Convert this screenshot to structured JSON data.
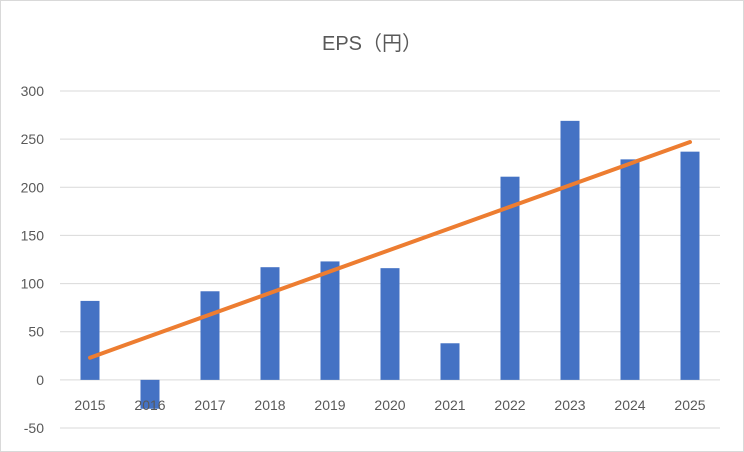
{
  "chart_data": {
    "type": "bar",
    "title": "EPS（円）",
    "xlabel": "",
    "ylabel": "",
    "categories": [
      "2015",
      "2016",
      "2017",
      "2018",
      "2019",
      "2020",
      "2021",
      "2022",
      "2023",
      "2024",
      "2025"
    ],
    "series": [
      {
        "values": [
          82,
          -30,
          92,
          117,
          123,
          116,
          38,
          211,
          269,
          229,
          237
        ],
        "color": "#4472c4"
      }
    ],
    "trendline": {
      "type": "linear",
      "color": "#ed7d31",
      "start": 23,
      "end": 247
    },
    "ylim": [
      -50,
      300
    ],
    "yticks": [
      -50,
      0,
      50,
      100,
      150,
      200,
      250,
      300
    ],
    "ytick_labels": [
      "-50",
      "0",
      "50",
      "100",
      "150",
      "200",
      "250",
      "300"
    ],
    "grid": true,
    "legend": "none"
  }
}
